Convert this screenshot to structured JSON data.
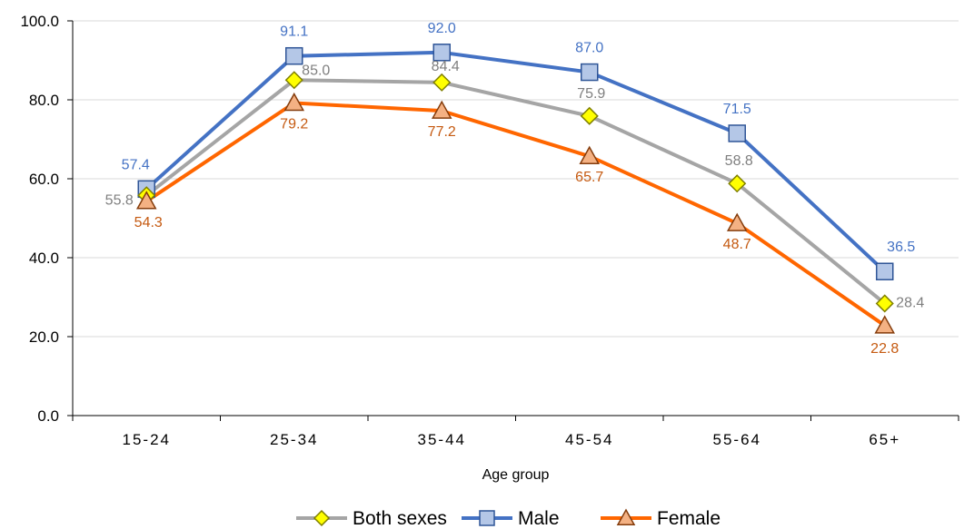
{
  "chart_data": {
    "type": "line",
    "title": "",
    "xlabel": "Age group",
    "ylabel": "",
    "categories": [
      "15-24",
      "25-34",
      "35-44",
      "45-54",
      "55-64",
      "65+"
    ],
    "ylim": [
      0,
      100
    ],
    "yticks": [
      "0.0",
      "20.0",
      "40.0",
      "60.0",
      "80.0",
      "100.0"
    ],
    "grid": true,
    "legend_position": "bottom",
    "series": [
      {
        "name": "Both sexes",
        "values": [
          55.8,
          85.0,
          84.4,
          75.9,
          58.8,
          28.4
        ],
        "labels": [
          "55.8",
          "85.0",
          "84.4",
          "75.9",
          "58.8",
          "28.4"
        ],
        "line_color": "#a5a5a5",
        "marker": "diamond",
        "marker_fill": "#ffff00",
        "marker_stroke": "#7f7f00",
        "label_color": "#7f7f7f"
      },
      {
        "name": "Male",
        "values": [
          57.4,
          91.1,
          92.0,
          87.0,
          71.5,
          36.5
        ],
        "labels": [
          "57.4",
          "91.1",
          "92.0",
          "87.0",
          "71.5",
          "36.5"
        ],
        "line_color": "#4472c4",
        "marker": "square",
        "marker_fill": "#b4c7e7",
        "marker_stroke": "#2f5597",
        "label_color": "#4472c4"
      },
      {
        "name": "Female",
        "values": [
          54.3,
          79.2,
          77.2,
          65.7,
          48.7,
          22.8
        ],
        "labels": [
          "54.3",
          "79.2",
          "77.2",
          "65.7",
          "48.7",
          "22.8"
        ],
        "line_color": "#ff6600",
        "marker": "triangle",
        "marker_fill": "#f4b183",
        "marker_stroke": "#843c0c",
        "label_color": "#c55a11"
      }
    ]
  }
}
